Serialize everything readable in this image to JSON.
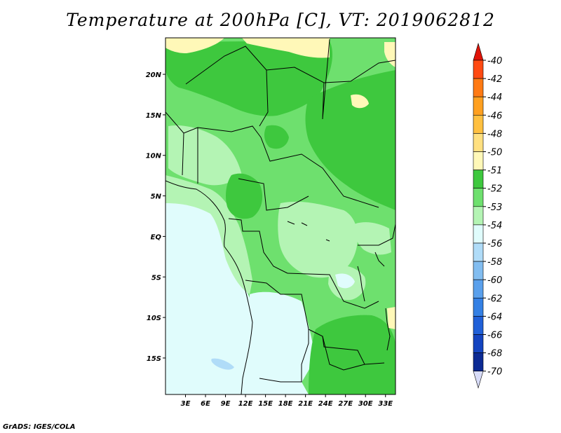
{
  "title": "Temperature at 200hPa [C], VT: 2019062812",
  "footer": "GrADS: IGES/COLA",
  "map": {
    "lon_range": [
      0,
      34.5
    ],
    "lat_range": [
      -19.5,
      24.5
    ],
    "lat_ticks": [
      {
        "value": 20,
        "label": "20N"
      },
      {
        "value": 15,
        "label": "15N"
      },
      {
        "value": 10,
        "label": "10N"
      },
      {
        "value": 5,
        "label": "5N"
      },
      {
        "value": 0,
        "label": "EQ"
      },
      {
        "value": -5,
        "label": "5S"
      },
      {
        "value": -10,
        "label": "10S"
      },
      {
        "value": -15,
        "label": "15S"
      }
    ],
    "lon_ticks": [
      {
        "value": 3,
        "label": "3E"
      },
      {
        "value": 6,
        "label": "6E"
      },
      {
        "value": 9,
        "label": "9E"
      },
      {
        "value": 12,
        "label": "12E"
      },
      {
        "value": 15,
        "label": "15E"
      },
      {
        "value": 18,
        "label": "18E"
      },
      {
        "value": 21,
        "label": "21E"
      },
      {
        "value": 24,
        "label": "24E"
      },
      {
        "value": 27,
        "label": "27E"
      },
      {
        "value": 30,
        "label": "30E"
      },
      {
        "value": 33,
        "label": "33E"
      }
    ]
  },
  "colorbar": {
    "levels": [
      {
        "label": "-40",
        "color": "#ff1e10"
      },
      {
        "label": "-42",
        "color": "#ff4a12"
      },
      {
        "label": "-44",
        "color": "#ff7a14"
      },
      {
        "label": "-46",
        "color": "#ffa020"
      },
      {
        "label": "-48",
        "color": "#ffc040"
      },
      {
        "label": "-50",
        "color": "#ffe080"
      },
      {
        "label": "-51",
        "color": "#fff8b8"
      },
      {
        "label": "-52",
        "color": "#3ec83e"
      },
      {
        "label": "-53",
        "color": "#6ee06e"
      },
      {
        "label": "-54",
        "color": "#b4f4b4"
      },
      {
        "label": "-56",
        "color": "#e0fcfc"
      },
      {
        "label": "-58",
        "color": "#b0dcf8"
      },
      {
        "label": "-60",
        "color": "#82bdf0"
      },
      {
        "label": "-62",
        "color": "#5aa0ec"
      },
      {
        "label": "-64",
        "color": "#3480e4"
      },
      {
        "label": "-66",
        "color": "#2060d8"
      },
      {
        "label": "-68",
        "color": "#1444c0"
      },
      {
        "label": "-70",
        "color": "#0c2a94"
      }
    ],
    "top_color": "#e01408",
    "bottom_color": "#080c60",
    "end_color": "#d8dcf8"
  }
}
